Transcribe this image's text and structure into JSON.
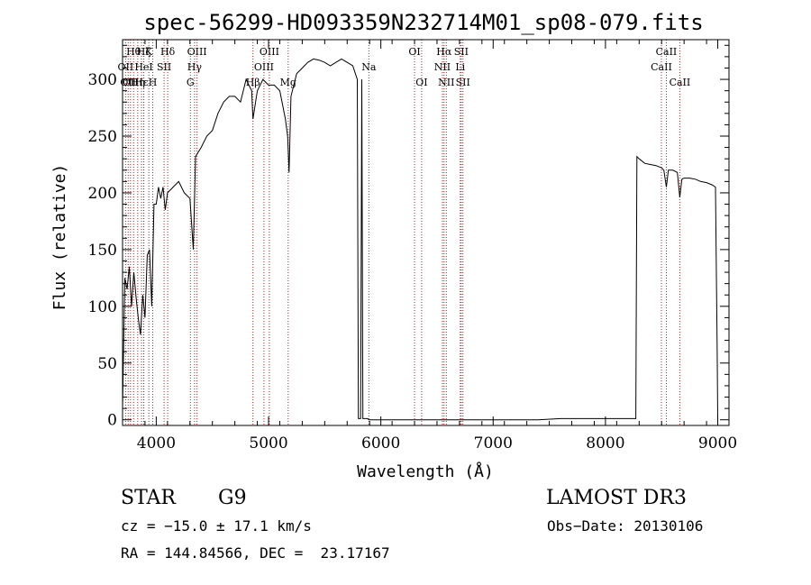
{
  "chart_data": {
    "type": "line",
    "title": "spec-56299-HD093359N232714M01_sp08-079.fits",
    "xlabel": "Wavelength (Å)",
    "ylabel": "Flux (relative)",
    "xlim": [
      3700,
      9100
    ],
    "ylim": [
      -5,
      335
    ],
    "xticks": [
      4000,
      5000,
      6000,
      7000,
      8000,
      9000
    ],
    "yticks": [
      0,
      50,
      100,
      150,
      200,
      250,
      300
    ],
    "grid": false,
    "series": [
      {
        "x": [
          3700,
          3720,
          3740,
          3760,
          3780,
          3800,
          3820,
          3840,
          3860,
          3880,
          3900,
          3920,
          3940,
          3960,
          3980,
          4000,
          4020,
          4040,
          4060,
          4080,
          4100,
          4150,
          4200,
          4250,
          4300,
          4330,
          4350,
          4400,
          4450,
          4500,
          4550,
          4600,
          4650,
          4700,
          4750,
          4800,
          4850,
          4861,
          4900,
          4950,
          5000,
          5050,
          5100,
          5150,
          5170,
          5183,
          5200,
          5250,
          5300,
          5350,
          5400,
          5450,
          5500,
          5550,
          5600,
          5650,
          5700,
          5750,
          5790,
          5800,
          5810,
          5820,
          5830,
          5840,
          5860,
          5880,
          5895,
          5920,
          6000,
          6500,
          7000,
          7200,
          7400,
          7600,
          7800,
          8000,
          8200,
          8250,
          8270,
          8280,
          8300,
          8350,
          8400,
          8450,
          8500,
          8520,
          8542,
          8560,
          8600,
          8640,
          8662,
          8680,
          8700,
          8750,
          8800,
          8850,
          8900,
          8950,
          8980,
          8995,
          9000
        ],
        "y": [
          10,
          125,
          115,
          135,
          100,
          130,
          108,
          90,
          75,
          110,
          90,
          145,
          150,
          100,
          190,
          190,
          205,
          195,
          205,
          185,
          200,
          205,
          210,
          200,
          195,
          150,
          232,
          240,
          250,
          255,
          270,
          280,
          285,
          285,
          280,
          300,
          290,
          265,
          290,
          300,
          295,
          295,
          290,
          265,
          250,
          218,
          285,
          305,
          310,
          315,
          318,
          317,
          315,
          312,
          315,
          318,
          315,
          312,
          300,
          1,
          1,
          1,
          300,
          1,
          1,
          1,
          0,
          0,
          0,
          0,
          0,
          0,
          0,
          1,
          1,
          1,
          1,
          1,
          1,
          232,
          230,
          226,
          225,
          224,
          222,
          220,
          205,
          220,
          220,
          218,
          196,
          212,
          213,
          213,
          212,
          210,
          209,
          207,
          205,
          60,
          0
        ]
      }
    ],
    "line_markers": [
      {
        "w": 3727,
        "label": "OII",
        "row": 1
      },
      {
        "w": 3750,
        "label": "OII",
        "row": 2
      },
      {
        "w": 3771,
        "label": "OII",
        "row": 2
      },
      {
        "w": 3798,
        "label": "Hθ",
        "row": 0
      },
      {
        "w": 3835,
        "label": "Hη",
        "row": 2
      },
      {
        "w": 3869,
        "label": "Hε",
        "row": 2
      },
      {
        "w": 3889,
        "label": "Hζ",
        "row": 0
      },
      {
        "w": 3889,
        "label": "HeI",
        "row": 1
      },
      {
        "w": 3934,
        "label": "K",
        "row": 0
      },
      {
        "w": 3969,
        "label": "H",
        "row": 2
      },
      {
        "w": 4070,
        "label": "SII",
        "row": 1
      },
      {
        "w": 4102,
        "label": "Hδ",
        "row": 0
      },
      {
        "w": 4304,
        "label": "G",
        "row": 2
      },
      {
        "w": 4341,
        "label": "Hγ",
        "row": 1
      },
      {
        "w": 4363,
        "label": "OIII",
        "row": 0
      },
      {
        "w": 4861,
        "label": "Hβ",
        "row": 2
      },
      {
        "w": 4959,
        "label": "OIII",
        "row": 1
      },
      {
        "w": 5007,
        "label": "OIII",
        "row": 0
      },
      {
        "w": 5175,
        "label": "Mg",
        "row": 2
      },
      {
        "w": 5893,
        "label": "Na",
        "row": 1
      },
      {
        "w": 6300,
        "label": "OI",
        "row": 0
      },
      {
        "w": 6363,
        "label": "OI",
        "row": 2
      },
      {
        "w": 6548,
        "label": "NII",
        "row": 1
      },
      {
        "w": 6563,
        "label": "Hα",
        "row": 0
      },
      {
        "w": 6583,
        "label": "NII",
        "row": 2
      },
      {
        "w": 6707,
        "label": "Li",
        "row": 1
      },
      {
        "w": 6716,
        "label": "SII",
        "row": 0
      },
      {
        "w": 6731,
        "label": "SII",
        "row": 2
      },
      {
        "w": 8498,
        "label": "CaII",
        "row": 1
      },
      {
        "w": 8542,
        "label": "CaII",
        "row": 0
      },
      {
        "w": 8662,
        "label": "CaII",
        "row": 2
      }
    ]
  },
  "info": {
    "class": "STAR",
    "subclass": "G9",
    "survey": "LAMOST DR3",
    "cz": "cz = −15.0 ± 17.1 km/s",
    "obs_date": "Obs−Date: 20130106",
    "coords": "RA = 144.84566, DEC =  23.17167"
  },
  "colors": {
    "spectrum": "#000000",
    "line_marker": "#b22222"
  }
}
